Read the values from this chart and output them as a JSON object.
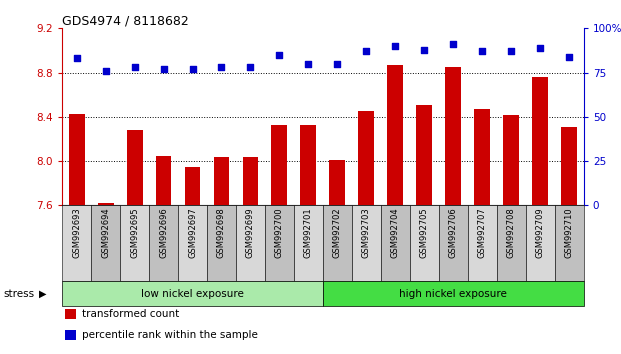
{
  "title": "GDS4974 / 8118682",
  "samples": [
    "GSM992693",
    "GSM992694",
    "GSM992695",
    "GSM992696",
    "GSM992697",
    "GSM992698",
    "GSM992699",
    "GSM992700",
    "GSM992701",
    "GSM992702",
    "GSM992703",
    "GSM992704",
    "GSM992705",
    "GSM992706",
    "GSM992707",
    "GSM992708",
    "GSM992709",
    "GSM992710"
  ],
  "bar_values": [
    8.43,
    7.62,
    8.28,
    8.05,
    7.95,
    8.04,
    8.04,
    8.33,
    8.33,
    8.01,
    8.45,
    8.87,
    8.51,
    8.85,
    8.47,
    8.42,
    8.76,
    8.31
  ],
  "dot_values": [
    83,
    76,
    78,
    77,
    77,
    78,
    78,
    85,
    80,
    80,
    87,
    90,
    88,
    91,
    87,
    87,
    89,
    84
  ],
  "ylim_left": [
    7.6,
    9.2
  ],
  "ylim_right": [
    0,
    100
  ],
  "yticks_left": [
    7.6,
    8.0,
    8.4,
    8.8,
    9.2
  ],
  "yticks_right": [
    0,
    25,
    50,
    75,
    100
  ],
  "ytick_labels_right": [
    "0",
    "25",
    "50",
    "75",
    "100%"
  ],
  "bar_color": "#cc0000",
  "dot_color": "#0000cc",
  "groups": [
    {
      "label": "low nickel exposure",
      "start": 0,
      "end": 9,
      "color": "#aaeaaa"
    },
    {
      "label": "high nickel exposure",
      "start": 9,
      "end": 18,
      "color": "#44dd44"
    }
  ],
  "stress_label": "stress",
  "legend_items": [
    {
      "label": "transformed count",
      "color": "#cc0000"
    },
    {
      "label": "percentile rank within the sample",
      "color": "#0000cc"
    }
  ],
  "axis_color_left": "#cc0000",
  "axis_color_right": "#0000cc",
  "grid_yticks": [
    8.0,
    8.4,
    8.8
  ]
}
